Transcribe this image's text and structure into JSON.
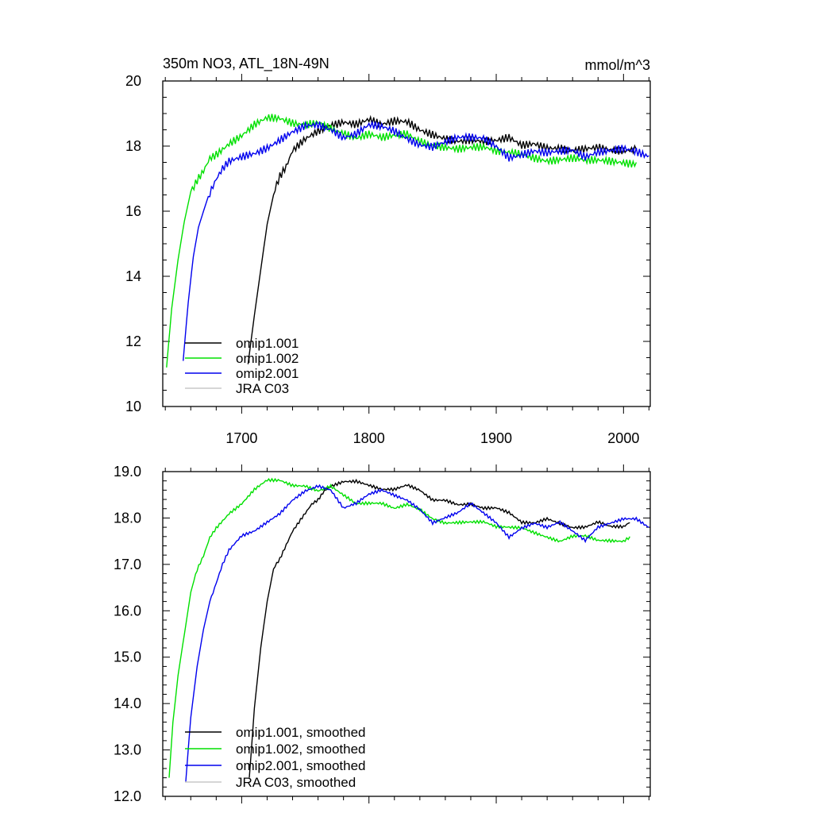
{
  "chart_data": [
    {
      "type": "line",
      "title": "350m NO3, ATL_18N-49N",
      "units": "mmol/m^3",
      "xlim": [
        1638,
        2021
      ],
      "ylim": [
        10,
        20
      ],
      "x_ticks": [
        "1700",
        "1800",
        "1900",
        "2000"
      ],
      "y_ticks": [
        "10",
        "12",
        "14",
        "16",
        "18",
        "20"
      ],
      "grid": false,
      "legend_position": "bottom-left",
      "series": [
        {
          "name": "omip1.001",
          "color": "#000000",
          "x": [
            1705,
            1710,
            1715,
            1720,
            1725,
            1730,
            1735,
            1740,
            1745,
            1750,
            1760,
            1770,
            1780,
            1790,
            1800,
            1810,
            1820,
            1830,
            1840,
            1850,
            1860,
            1870,
            1880,
            1890,
            1900,
            1910,
            1920,
            1930,
            1940,
            1950,
            1960,
            1970,
            1980,
            1990,
            2000,
            2010
          ],
          "y": [
            11.3,
            12.8,
            14.2,
            15.6,
            16.5,
            17.0,
            17.3,
            17.8,
            18.0,
            18.2,
            18.5,
            18.7,
            18.8,
            18.7,
            18.8,
            18.6,
            18.7,
            18.7,
            18.5,
            18.4,
            18.3,
            18.2,
            18.2,
            18.1,
            18.1,
            18.2,
            18.0,
            18.1,
            18.0,
            18.0,
            17.9,
            17.9,
            17.9,
            17.8,
            17.8,
            17.9
          ]
        },
        {
          "name": "omip1.002",
          "color": "#00e000",
          "x": [
            1641,
            1645,
            1650,
            1655,
            1660,
            1665,
            1670,
            1675,
            1680,
            1690,
            1700,
            1710,
            1720,
            1730,
            1740,
            1750,
            1760,
            1770,
            1780,
            1790,
            1800,
            1810,
            1820,
            1830,
            1840,
            1850,
            1860,
            1870,
            1880,
            1890,
            1900,
            1910,
            1920,
            1930,
            1940,
            1950,
            1960,
            1970,
            1980,
            1990,
            2000,
            2010
          ],
          "y": [
            11.2,
            13.0,
            14.5,
            15.7,
            16.6,
            17.0,
            17.3,
            17.7,
            17.8,
            18.1,
            18.3,
            18.6,
            18.8,
            18.8,
            18.7,
            18.7,
            18.8,
            18.6,
            18.4,
            18.2,
            18.3,
            18.2,
            18.3,
            18.4,
            18.2,
            18.1,
            18.0,
            17.9,
            17.9,
            17.9,
            17.8,
            17.8,
            17.8,
            17.7,
            17.6,
            17.6,
            17.6,
            17.5,
            17.5,
            17.5,
            17.5,
            17.5
          ]
        },
        {
          "name": "omip2.001",
          "color": "#0000ee",
          "x": [
            1654,
            1658,
            1662,
            1666,
            1670,
            1675,
            1680,
            1685,
            1690,
            1700,
            1710,
            1720,
            1730,
            1740,
            1750,
            1760,
            1770,
            1780,
            1790,
            1800,
            1810,
            1820,
            1830,
            1840,
            1850,
            1860,
            1870,
            1880,
            1890,
            1900,
            1910,
            1920,
            1930,
            1940,
            1950,
            1960,
            1970,
            1980,
            1990,
            2000,
            2010,
            2020
          ],
          "y": [
            11.4,
            13.2,
            14.6,
            15.5,
            16.0,
            16.6,
            17.0,
            17.3,
            17.5,
            17.6,
            17.7,
            17.9,
            18.2,
            18.5,
            18.7,
            18.7,
            18.5,
            18.2,
            18.3,
            18.6,
            18.6,
            18.5,
            18.3,
            18.1,
            18.0,
            18.1,
            18.2,
            18.2,
            18.2,
            18.0,
            17.7,
            17.8,
            17.9,
            17.8,
            17.8,
            17.8,
            17.6,
            17.8,
            17.9,
            18.0,
            17.9,
            17.7
          ]
        },
        {
          "name": "JRA C03",
          "color": "#c8c8c8",
          "x": [],
          "y": []
        }
      ]
    },
    {
      "type": "line",
      "title": "",
      "xlim": [
        1638,
        2021
      ],
      "ylim": [
        12.0,
        19.0
      ],
      "x_ticks": [
        "",
        "",
        "",
        ""
      ],
      "y_ticks": [
        "12.0",
        "13.0",
        "14.0",
        "15.0",
        "16.0",
        "17.0",
        "18.0",
        "19.0"
      ],
      "grid": false,
      "legend_position": "bottom-left",
      "series": [
        {
          "name": "omip1.001, smoothed",
          "color": "#000000",
          "x": [
            1706,
            1710,
            1715,
            1720,
            1725,
            1730,
            1735,
            1740,
            1745,
            1750,
            1755,
            1760,
            1765,
            1770,
            1780,
            1790,
            1800,
            1810,
            1820,
            1830,
            1840,
            1850,
            1860,
            1870,
            1880,
            1890,
            1900,
            1910,
            1920,
            1930,
            1940,
            1950,
            1960,
            1970,
            1980,
            1990,
            2000,
            2005
          ],
          "y": [
            12.4,
            13.9,
            15.2,
            16.2,
            16.9,
            17.1,
            17.4,
            17.7,
            17.9,
            18.1,
            18.3,
            18.4,
            18.6,
            18.7,
            18.8,
            18.8,
            18.7,
            18.6,
            18.6,
            18.7,
            18.6,
            18.4,
            18.4,
            18.3,
            18.3,
            18.2,
            18.2,
            18.1,
            17.9,
            17.9,
            18.0,
            17.9,
            17.8,
            17.8,
            17.9,
            17.8,
            17.8,
            17.9
          ]
        },
        {
          "name": "omip1.002, smoothed",
          "color": "#00e000",
          "x": [
            1643,
            1646,
            1650,
            1655,
            1660,
            1665,
            1670,
            1675,
            1680,
            1690,
            1700,
            1710,
            1720,
            1730,
            1740,
            1750,
            1760,
            1770,
            1780,
            1790,
            1800,
            1810,
            1820,
            1830,
            1840,
            1850,
            1860,
            1870,
            1880,
            1890,
            1900,
            1910,
            1920,
            1930,
            1940,
            1950,
            1960,
            1970,
            1980,
            1990,
            2000,
            2005
          ],
          "y": [
            12.4,
            13.6,
            14.6,
            15.5,
            16.4,
            16.9,
            17.2,
            17.6,
            17.8,
            18.1,
            18.3,
            18.6,
            18.8,
            18.8,
            18.7,
            18.7,
            18.6,
            18.7,
            18.5,
            18.3,
            18.3,
            18.3,
            18.2,
            18.3,
            18.2,
            18.0,
            17.9,
            17.9,
            17.9,
            17.9,
            17.8,
            17.8,
            17.8,
            17.7,
            17.6,
            17.5,
            17.6,
            17.6,
            17.5,
            17.5,
            17.5,
            17.6
          ]
        },
        {
          "name": "omip2.001, smoothed",
          "color": "#0000ee",
          "x": [
            1656,
            1660,
            1665,
            1670,
            1675,
            1680,
            1685,
            1690,
            1700,
            1710,
            1720,
            1730,
            1740,
            1750,
            1760,
            1770,
            1780,
            1790,
            1800,
            1810,
            1820,
            1830,
            1840,
            1850,
            1860,
            1870,
            1880,
            1890,
            1900,
            1910,
            1920,
            1930,
            1940,
            1950,
            1960,
            1970,
            1980,
            1990,
            2000,
            2010,
            2020
          ],
          "y": [
            12.3,
            13.7,
            14.8,
            15.6,
            16.2,
            16.6,
            17.0,
            17.3,
            17.6,
            17.7,
            17.9,
            18.1,
            18.4,
            18.6,
            18.7,
            18.6,
            18.2,
            18.3,
            18.5,
            18.6,
            18.5,
            18.4,
            18.2,
            17.9,
            18.0,
            18.1,
            18.3,
            18.1,
            17.9,
            17.6,
            17.8,
            17.9,
            17.8,
            17.9,
            17.7,
            17.5,
            17.8,
            17.9,
            18.0,
            18.0,
            17.8
          ]
        },
        {
          "name": "JRA C03, smoothed",
          "color": "#c8c8c8",
          "x": [],
          "y": []
        }
      ]
    }
  ]
}
